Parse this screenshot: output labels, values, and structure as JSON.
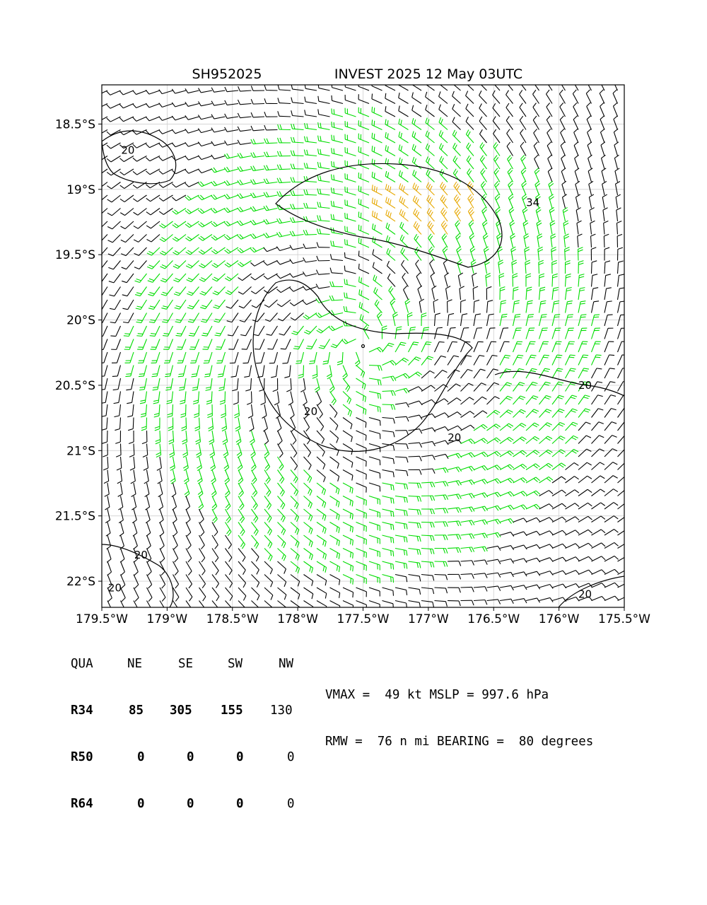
{
  "title": {
    "left": "SH952025",
    "right": "INVEST 2025 12 May 03UTC"
  },
  "chart_data": {
    "type": "wind-barb-map",
    "x_ticks": [
      "179.5°W",
      "179°W",
      "178.5°W",
      "178°W",
      "177.5°W",
      "177°W",
      "176.5°W",
      "176°W",
      "175.5°W"
    ],
    "y_ticks": [
      "18.5°S",
      "19°S",
      "19.5°S",
      "20°S",
      "20.5°S",
      "21°S",
      "21.5°S",
      "22°S"
    ],
    "xlim": [
      -179.5,
      -175.5
    ],
    "ylim": [
      -22.2,
      -18.2
    ],
    "grid": true,
    "center": {
      "lon": -177.5,
      "lat": -20.2
    },
    "speed_classes": [
      {
        "name": "below 20 kt",
        "color": "#000000"
      },
      {
        "name": "20-34 kt",
        "color": "#00dd00"
      },
      {
        "name": "34 kt and above",
        "color": "#e6a800"
      }
    ],
    "contour_labels": [
      {
        "text": "20",
        "lon": -179.3,
        "lat": -18.7
      },
      {
        "text": "34",
        "lon": -176.2,
        "lat": -19.1
      },
      {
        "text": "20",
        "lon": -176.8,
        "lat": -20.9
      },
      {
        "text": "20",
        "lon": -177.9,
        "lat": -20.7
      },
      {
        "text": "20",
        "lon": -175.8,
        "lat": -20.5
      },
      {
        "text": "20",
        "lon": -179.2,
        "lat": -21.8
      },
      {
        "text": "20",
        "lon": -179.4,
        "lat": -22.05
      },
      {
        "text": "20",
        "lon": -175.8,
        "lat": -22.1
      }
    ]
  },
  "radii_table": {
    "header": [
      "QUA",
      "NE",
      "SE",
      "SW",
      "NW"
    ],
    "rows": [
      {
        "label": "R34",
        "values": [
          "85",
          "305",
          "155",
          "130"
        ]
      },
      {
        "label": "R50",
        "values": [
          "0",
          "0",
          "0",
          "0"
        ]
      },
      {
        "label": "R64",
        "values": [
          "0",
          "0",
          "0",
          "0"
        ]
      }
    ]
  },
  "storm_info": {
    "line1": "VMAX =  49 kt MSLP = 997.6 hPa",
    "line2": "RMW =  76 n mi BEARING =  80 degrees"
  },
  "colors": {
    "barb_weak": "#000000",
    "barb_medium": "#00dd00",
    "barb_strong": "#e6a800",
    "grid": "#d0d0d0"
  }
}
